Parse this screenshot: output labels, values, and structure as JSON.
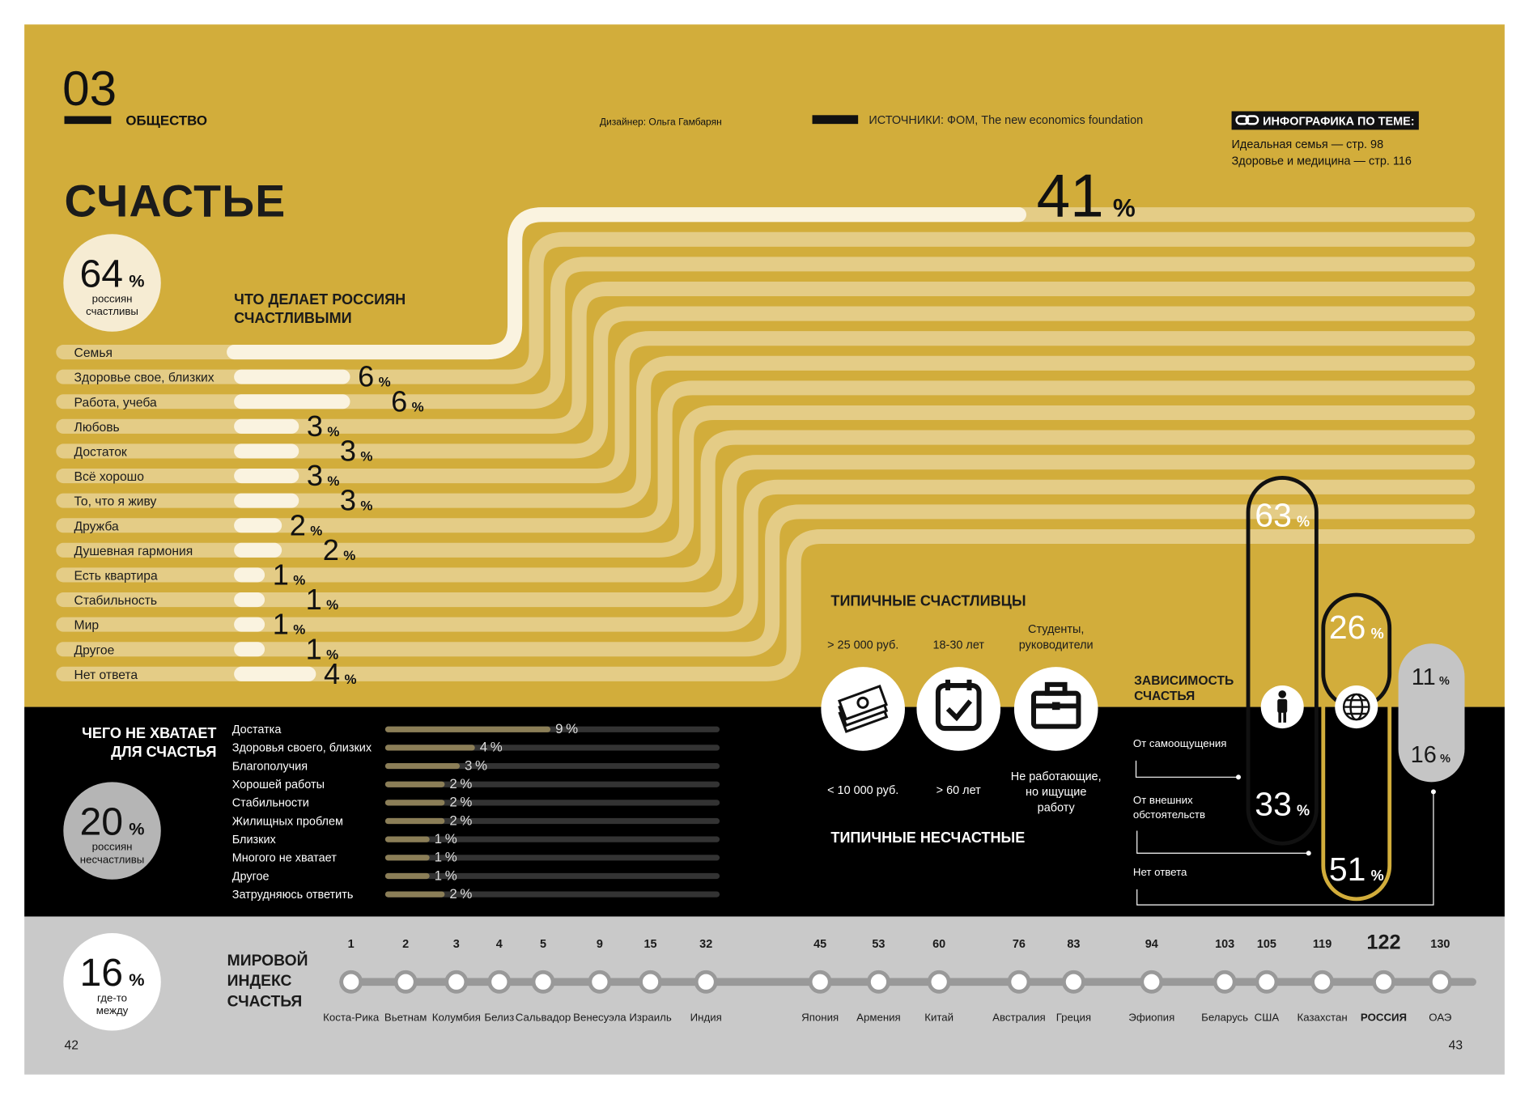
{
  "header": {
    "number": "03",
    "section": "ОБЩЕСТВО",
    "designer": "Дизайнер: Ольга Гамбарян",
    "sources": "ИСТОЧНИКИ: ФОМ, The new economics foundation",
    "related_title": "ИНФОГРАФИКА ПО ТЕМЕ:",
    "related": [
      "Идеальная семья — стр. 98",
      "Здоровье и медицина — стр. 116"
    ]
  },
  "title": "СЧАСТЬЕ",
  "unit": "%",
  "happy": {
    "value": 64,
    "label": [
      "россиян",
      "счастливы"
    ]
  },
  "what_makes": {
    "title": [
      "ЧТО ДЕЛАЕТ РОССИЯН",
      "СЧАСТЛИВЫМИ"
    ],
    "items": [
      {
        "label": "Семья",
        "value": 41
      },
      {
        "label": "Здоровье свое, близких",
        "value": 6
      },
      {
        "label": "Работа, учеба",
        "value": 6
      },
      {
        "label": "Любовь",
        "value": 3
      },
      {
        "label": "Достаток",
        "value": 3
      },
      {
        "label": "Всё хорошо",
        "value": 3
      },
      {
        "label": "То, что я живу",
        "value": 3
      },
      {
        "label": "Дружба",
        "value": 2
      },
      {
        "label": "Душевная гармония",
        "value": 2
      },
      {
        "label": "Есть квартира",
        "value": 1
      },
      {
        "label": "Стабильность",
        "value": 1
      },
      {
        "label": "Мир",
        "value": 1
      },
      {
        "label": "Другое",
        "value": 1
      },
      {
        "label": "Нет ответа",
        "value": 4
      }
    ]
  },
  "missing": {
    "title": [
      "ЧЕГО НЕ ХВАТАЕТ",
      "ДЛЯ СЧАСТЬЯ"
    ],
    "items": [
      {
        "label": "Достатка",
        "value": 9
      },
      {
        "label": "Здоровья своего, близких",
        "value": 4
      },
      {
        "label": "Благополучия",
        "value": 3
      },
      {
        "label": "Хорошей работы",
        "value": 2
      },
      {
        "label": "Стабильности",
        "value": 2
      },
      {
        "label": "Жилищных проблем",
        "value": 2
      },
      {
        "label": "Близких",
        "value": 1
      },
      {
        "label": "Многого не хватает",
        "value": 1
      },
      {
        "label": "Другое",
        "value": 1
      },
      {
        "label": "Затрудняюсь ответить",
        "value": 2
      }
    ]
  },
  "unhappy": {
    "value": 20,
    "label": [
      "россиян",
      "несчастливы"
    ]
  },
  "typical_happy": {
    "title": "ТИПИЧНЫЕ СЧАСТЛИВЦЫ",
    "items": [
      [
        "> 25 000 руб."
      ],
      [
        "18-30 лет"
      ],
      [
        "Студенты,",
        "руководители"
      ]
    ]
  },
  "typical_unhappy": {
    "title": "ТИПИЧНЫЕ НЕСЧАСТНЫЕ",
    "items": [
      [
        "< 10 000 руб."
      ],
      [
        "> 60 лет"
      ],
      [
        "Не работающие,",
        "но ищущие",
        "работу"
      ]
    ]
  },
  "dependence": {
    "title": [
      "ЗАВИСИМОСТЬ",
      "СЧАСТЬЯ"
    ],
    "legend": [
      [
        "От самоощущения"
      ],
      [
        "От внешних",
        "обстоятельств"
      ],
      [
        "Нет ответа"
      ]
    ],
    "columns": [
      {
        "values": [
          63,
          33
        ]
      },
      {
        "values": [
          26,
          51
        ]
      },
      {
        "values": [
          11,
          16
        ]
      }
    ]
  },
  "between": {
    "value": 16,
    "label": [
      "где-то",
      "между"
    ]
  },
  "index": {
    "title": [
      "МИРОВОЙ",
      "ИНДЕКС",
      "СЧАСТЬЯ"
    ],
    "countries": [
      {
        "rank": 1,
        "name": "Коста-Рика"
      },
      {
        "rank": 2,
        "name": "Вьетнам"
      },
      {
        "rank": 3,
        "name": "Колумбия"
      },
      {
        "rank": 4,
        "name": "Белиз"
      },
      {
        "rank": 5,
        "name": "Сальвадор"
      },
      {
        "rank": 9,
        "name": "Венесуэла"
      },
      {
        "rank": 15,
        "name": "Израиль"
      },
      {
        "rank": 32,
        "name": "Индия"
      },
      {
        "rank": 45,
        "name": "Япония"
      },
      {
        "rank": 53,
        "name": "Армения"
      },
      {
        "rank": 60,
        "name": "Китай"
      },
      {
        "rank": 76,
        "name": "Австралия"
      },
      {
        "rank": 83,
        "name": "Греция"
      },
      {
        "rank": 94,
        "name": "Эфиопия"
      },
      {
        "rank": 103,
        "name": "Беларусь"
      },
      {
        "rank": 105,
        "name": "США"
      },
      {
        "rank": 119,
        "name": "Казахстан"
      },
      {
        "rank": 122,
        "name": "РОССИЯ",
        "highlight": true
      },
      {
        "rank": 130,
        "name": "ОАЭ"
      }
    ]
  },
  "pages": [
    "42",
    "43"
  ]
}
